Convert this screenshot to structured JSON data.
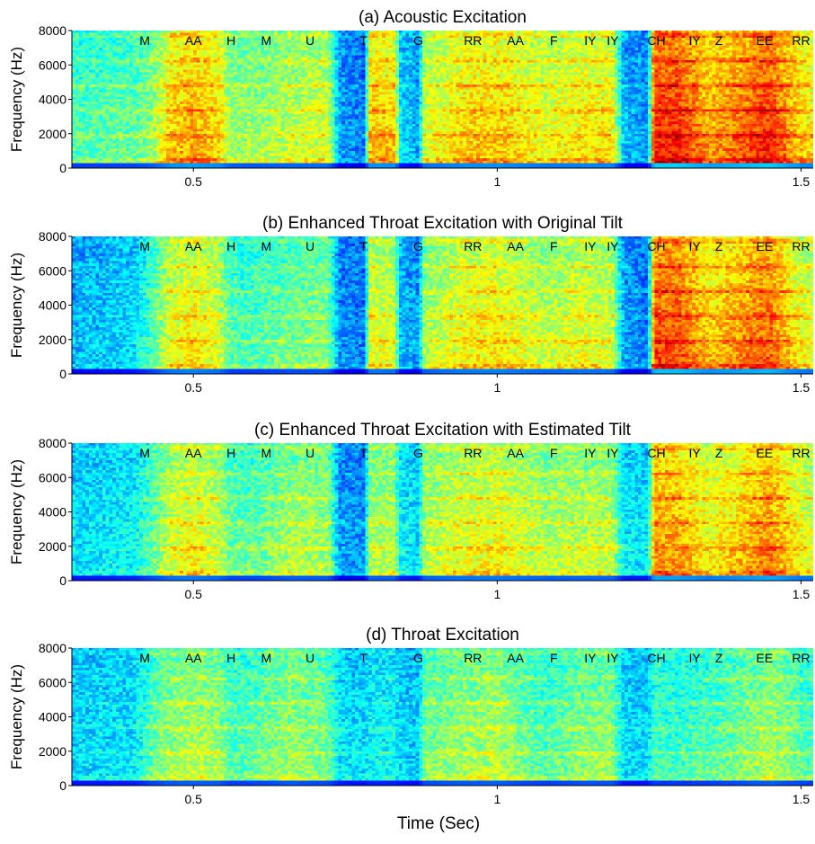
{
  "figure": {
    "xlabel": "Time (Sec)"
  },
  "chart_data": [
    {
      "type": "heatmap",
      "title": "(a) Acoustic Excitation",
      "ylabel": "Frequency (Hz)",
      "xlim": [
        0.3,
        1.52
      ],
      "ylim": [
        0,
        8000
      ],
      "xticks": [
        0.5,
        1,
        1.5
      ],
      "xtick_labels": [
        "0.5",
        "1",
        "1.5"
      ],
      "yticks": [
        0,
        2000,
        4000,
        6000,
        8000
      ],
      "ytick_labels": [
        "0",
        "2000",
        "4000",
        "6000",
        "8000"
      ],
      "phonemes": [
        {
          "label": "M",
          "t": 0.42
        },
        {
          "label": "AA",
          "t": 0.5
        },
        {
          "label": "H",
          "t": 0.562
        },
        {
          "label": "M",
          "t": 0.62
        },
        {
          "label": "U",
          "t": 0.692
        },
        {
          "label": "T",
          "t": 0.78
        },
        {
          "label": "G",
          "t": 0.87
        },
        {
          "label": "RR",
          "t": 0.96
        },
        {
          "label": "AA",
          "t": 1.03
        },
        {
          "label": "F",
          "t": 1.093
        },
        {
          "label": "IY",
          "t": 1.153
        },
        {
          "label": "IY",
          "t": 1.19
        },
        {
          "label": "CH",
          "t": 1.262
        },
        {
          "label": "IY",
          "t": 1.325
        },
        {
          "label": "Z",
          "t": 1.365
        },
        {
          "label": "EE",
          "t": 1.44
        },
        {
          "label": "RR",
          "t": 1.5
        }
      ]
    },
    {
      "type": "heatmap",
      "title": "(b) Enhanced Throat Excitation with Original Tilt",
      "ylabel": "Frequency (Hz)",
      "xlim": [
        0.3,
        1.52
      ],
      "ylim": [
        0,
        8000
      ],
      "xticks": [
        0.5,
        1,
        1.5
      ],
      "xtick_labels": [
        "0.5",
        "1",
        "1.5"
      ],
      "yticks": [
        0,
        2000,
        4000,
        6000,
        8000
      ],
      "ytick_labels": [
        "0",
        "2000",
        "4000",
        "6000",
        "8000"
      ],
      "phonemes": [
        {
          "label": "M",
          "t": 0.42
        },
        {
          "label": "AA",
          "t": 0.5
        },
        {
          "label": "H",
          "t": 0.562
        },
        {
          "label": "M",
          "t": 0.62
        },
        {
          "label": "U",
          "t": 0.692
        },
        {
          "label": "T",
          "t": 0.78
        },
        {
          "label": "G",
          "t": 0.87
        },
        {
          "label": "RR",
          "t": 0.96
        },
        {
          "label": "AA",
          "t": 1.03
        },
        {
          "label": "F",
          "t": 1.093
        },
        {
          "label": "IY",
          "t": 1.153
        },
        {
          "label": "IY",
          "t": 1.19
        },
        {
          "label": "CH",
          "t": 1.262
        },
        {
          "label": "IY",
          "t": 1.325
        },
        {
          "label": "Z",
          "t": 1.365
        },
        {
          "label": "EE",
          "t": 1.44
        },
        {
          "label": "RR",
          "t": 1.5
        }
      ]
    },
    {
      "type": "heatmap",
      "title": "(c) Enhanced Throat Excitation with Estimated Tilt",
      "ylabel": "Frequency (Hz)",
      "xlim": [
        0.3,
        1.52
      ],
      "ylim": [
        0,
        8000
      ],
      "xticks": [
        0.5,
        1,
        1.5
      ],
      "xtick_labels": [
        "0.5",
        "1",
        "1.5"
      ],
      "yticks": [
        0,
        2000,
        4000,
        6000,
        8000
      ],
      "ytick_labels": [
        "0",
        "2000",
        "4000",
        "6000",
        "8000"
      ],
      "phonemes": [
        {
          "label": "M",
          "t": 0.42
        },
        {
          "label": "AA",
          "t": 0.5
        },
        {
          "label": "H",
          "t": 0.562
        },
        {
          "label": "M",
          "t": 0.62
        },
        {
          "label": "U",
          "t": 0.692
        },
        {
          "label": "T",
          "t": 0.78
        },
        {
          "label": "G",
          "t": 0.87
        },
        {
          "label": "RR",
          "t": 0.96
        },
        {
          "label": "AA",
          "t": 1.03
        },
        {
          "label": "F",
          "t": 1.093
        },
        {
          "label": "IY",
          "t": 1.153
        },
        {
          "label": "IY",
          "t": 1.19
        },
        {
          "label": "CH",
          "t": 1.262
        },
        {
          "label": "IY",
          "t": 1.325
        },
        {
          "label": "Z",
          "t": 1.365
        },
        {
          "label": "EE",
          "t": 1.44
        },
        {
          "label": "RR",
          "t": 1.5
        }
      ]
    },
    {
      "type": "heatmap",
      "title": "(d) Throat Excitation",
      "ylabel": "Frequency (Hz)",
      "xlim": [
        0.3,
        1.52
      ],
      "ylim": [
        0,
        8000
      ],
      "xticks": [
        0.5,
        1,
        1.5
      ],
      "xtick_labels": [
        "0.5",
        "1",
        "1.5"
      ],
      "yticks": [
        0,
        2000,
        4000,
        6000,
        8000
      ],
      "ytick_labels": [
        "0",
        "2000",
        "4000",
        "6000",
        "8000"
      ],
      "phonemes": [
        {
          "label": "M",
          "t": 0.42
        },
        {
          "label": "AA",
          "t": 0.5
        },
        {
          "label": "H",
          "t": 0.562
        },
        {
          "label": "M",
          "t": 0.62
        },
        {
          "label": "U",
          "t": 0.692
        },
        {
          "label": "T",
          "t": 0.78
        },
        {
          "label": "G",
          "t": 0.87
        },
        {
          "label": "RR",
          "t": 0.96
        },
        {
          "label": "AA",
          "t": 1.03
        },
        {
          "label": "F",
          "t": 1.093
        },
        {
          "label": "IY",
          "t": 1.153
        },
        {
          "label": "IY",
          "t": 1.19
        },
        {
          "label": "CH",
          "t": 1.262
        },
        {
          "label": "IY",
          "t": 1.325
        },
        {
          "label": "Z",
          "t": 1.365
        },
        {
          "label": "EE",
          "t": 1.44
        },
        {
          "label": "RR",
          "t": 1.5
        }
      ]
    }
  ]
}
